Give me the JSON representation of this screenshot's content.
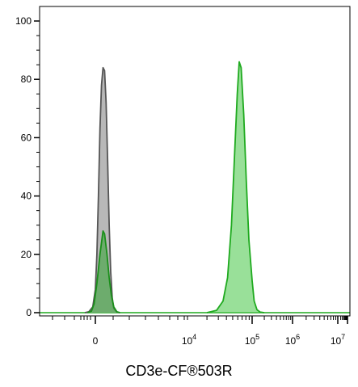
{
  "chart_data": {
    "type": "area",
    "title": "",
    "xlabel": "CD3e-CF®503R",
    "ylabel": "",
    "ylim": [
      0,
      100
    ],
    "y_ticks": [
      0,
      20,
      40,
      60,
      80,
      100
    ],
    "x_scale": "biexponential",
    "x_ticks": [
      {
        "base": "0",
        "exp": ""
      },
      {
        "base": "10",
        "exp": "4"
      },
      {
        "base": "10",
        "exp": "5"
      },
      {
        "base": "10",
        "exp": "6"
      },
      {
        "base": "10",
        "exp": "7"
      }
    ],
    "grid": false,
    "legend": "none",
    "series": [
      {
        "fill": "#b8b8b8",
        "stroke": "#555555",
        "points": [
          [
            -0.4,
            0
          ],
          [
            -0.25,
            0.3
          ],
          [
            -0.1,
            2
          ],
          [
            0.0,
            8
          ],
          [
            0.05,
            20
          ],
          [
            0.1,
            40
          ],
          [
            0.15,
            63
          ],
          [
            0.2,
            78
          ],
          [
            0.25,
            84
          ],
          [
            0.3,
            83
          ],
          [
            0.35,
            72
          ],
          [
            0.4,
            52
          ],
          [
            0.45,
            30
          ],
          [
            0.5,
            14
          ],
          [
            0.55,
            5
          ],
          [
            0.6,
            1.5
          ],
          [
            0.7,
            0.2
          ],
          [
            0.8,
            0
          ]
        ]
      },
      {
        "fill": "#3aa43a",
        "stroke": "#1a8f1a",
        "points": [
          [
            -0.3,
            0
          ],
          [
            -0.15,
            0.5
          ],
          [
            -0.05,
            3
          ],
          [
            0.05,
            10
          ],
          [
            0.15,
            20
          ],
          [
            0.25,
            28
          ],
          [
            0.3,
            27
          ],
          [
            0.38,
            20
          ],
          [
            0.45,
            12
          ],
          [
            0.52,
            6
          ],
          [
            0.6,
            2
          ],
          [
            0.7,
            0.3
          ],
          [
            0.8,
            0
          ]
        ]
      },
      {
        "fill": "#55cc55",
        "stroke": "#1faa1f",
        "points": [
          [
            3.3,
            0
          ],
          [
            3.45,
            0.8
          ],
          [
            3.55,
            4
          ],
          [
            3.62,
            12
          ],
          [
            3.68,
            30
          ],
          [
            3.73,
            55
          ],
          [
            3.77,
            75
          ],
          [
            3.8,
            86
          ],
          [
            3.83,
            84
          ],
          [
            3.87,
            68
          ],
          [
            3.91,
            45
          ],
          [
            3.95,
            25
          ],
          [
            4.0,
            11
          ],
          [
            4.05,
            4
          ],
          [
            4.12,
            1
          ],
          [
            4.2,
            0.2
          ],
          [
            4.3,
            0
          ]
        ]
      }
    ]
  }
}
